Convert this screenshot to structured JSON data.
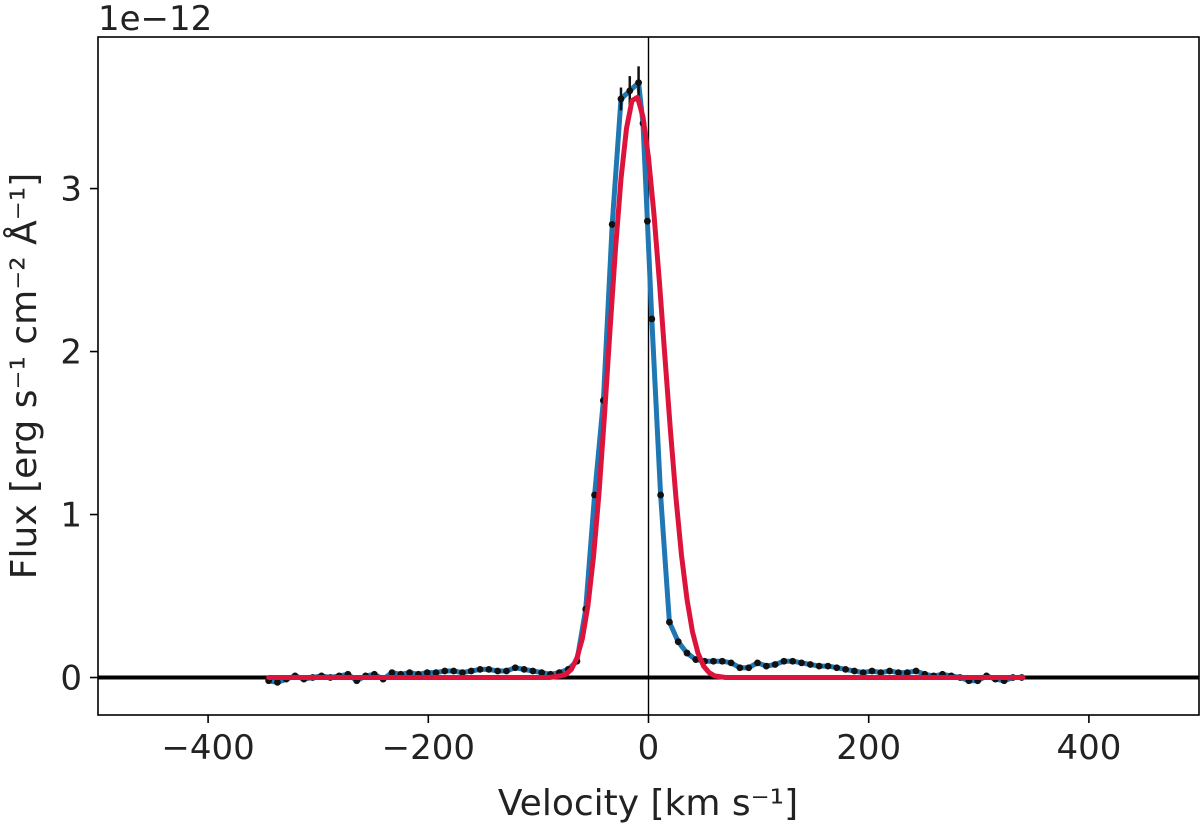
{
  "chart_data": {
    "type": "line",
    "xlabel": "Velocity [km s⁻¹]",
    "ylabel": "Flux [erg s⁻¹ cm⁻² Å⁻¹]",
    "y_offset_label": "1e−12",
    "y_scale_factor": 1e-12,
    "xlim": [
      -500,
      500
    ],
    "ylim": [
      -0.23,
      3.93
    ],
    "x_ticks": [
      -400,
      -200,
      0,
      200,
      400
    ],
    "x_tick_labels": [
      "−400",
      "−200",
      "0",
      "200",
      "400"
    ],
    "y_ticks": [
      0,
      1,
      2,
      3
    ],
    "y_tick_labels": [
      "0",
      "1",
      "2",
      "3"
    ],
    "grid": false,
    "reference_lines": {
      "horizontal_y": 0,
      "vertical_x": 0
    },
    "series": [
      {
        "role": "observed",
        "style": "points",
        "color": "#111111",
        "x": [
          -345,
          -337,
          -329,
          -321,
          -313,
          -305,
          -297,
          -289,
          -281,
          -273,
          -265,
          -257,
          -249,
          -241,
          -233,
          -225,
          -217,
          -209,
          -201,
          -193,
          -185,
          -177,
          -169,
          -161,
          -153,
          -145,
          -137,
          -129,
          -121,
          -113,
          -105,
          -97,
          -89,
          -81,
          -73,
          -65,
          -57,
          -49,
          -41,
          -33,
          -25,
          -17,
          -9,
          -5,
          -1,
          3,
          11,
          19,
          27,
          35,
          43,
          51,
          59,
          67,
          75,
          83,
          91,
          99,
          107,
          115,
          123,
          131,
          139,
          147,
          155,
          163,
          171,
          179,
          187,
          195,
          203,
          211,
          219,
          227,
          235,
          243,
          251,
          259,
          267,
          275,
          283,
          291,
          299,
          307,
          315,
          323,
          331,
          339
        ],
        "y": [
          -0.02,
          -0.03,
          -0.01,
          0.01,
          -0.01,
          0.0,
          0.01,
          0.0,
          0.01,
          0.02,
          -0.02,
          0.01,
          0.02,
          -0.01,
          0.03,
          0.02,
          0.03,
          0.02,
          0.03,
          0.03,
          0.04,
          0.04,
          0.03,
          0.04,
          0.05,
          0.05,
          0.04,
          0.04,
          0.06,
          0.05,
          0.04,
          0.03,
          0.02,
          0.03,
          0.05,
          0.1,
          0.42,
          1.12,
          1.7,
          2.78,
          3.55,
          3.6,
          3.65,
          3.4,
          2.8,
          2.2,
          1.12,
          0.34,
          0.22,
          0.15,
          0.11,
          0.1,
          0.1,
          0.1,
          0.09,
          0.06,
          0.06,
          0.09,
          0.07,
          0.08,
          0.1,
          0.1,
          0.09,
          0.08,
          0.07,
          0.07,
          0.06,
          0.05,
          0.04,
          0.03,
          0.04,
          0.03,
          0.04,
          0.03,
          0.03,
          0.04,
          0.02,
          0.01,
          0.02,
          0.01,
          0.0,
          -0.02,
          -0.02,
          0.01,
          -0.01,
          -0.02,
          0.0,
          0.0
        ],
        "yerr": [
          0,
          0,
          0,
          0,
          0,
          0,
          0,
          0,
          0,
          0,
          0,
          0,
          0,
          0,
          0,
          0,
          0,
          0,
          0,
          0,
          0,
          0,
          0,
          0,
          0,
          0,
          0,
          0,
          0,
          0,
          0,
          0,
          0,
          0,
          0,
          0,
          0,
          0,
          0,
          0,
          0.07,
          0.09,
          0.1,
          0,
          0,
          0,
          0,
          0,
          0,
          0,
          0,
          0,
          0,
          0,
          0,
          0,
          0,
          0,
          0,
          0,
          0,
          0,
          0,
          0,
          0,
          0,
          0,
          0,
          0,
          0,
          0,
          0,
          0,
          0,
          0,
          0,
          0,
          0,
          0,
          0,
          0,
          0,
          0,
          0,
          0,
          0,
          0,
          0
        ]
      },
      {
        "role": "data-line",
        "style": "line",
        "color": "#1f77b4",
        "x": [
          -345,
          -337,
          -329,
          -321,
          -313,
          -305,
          -297,
          -289,
          -281,
          -273,
          -265,
          -257,
          -249,
          -241,
          -233,
          -225,
          -217,
          -209,
          -201,
          -193,
          -185,
          -177,
          -169,
          -161,
          -153,
          -145,
          -137,
          -129,
          -121,
          -113,
          -105,
          -97,
          -89,
          -81,
          -73,
          -65,
          -57,
          -49,
          -41,
          -33,
          -25,
          -17,
          -9,
          -5,
          -1,
          3,
          11,
          19,
          27,
          35,
          43,
          51,
          59,
          67,
          75,
          83,
          91,
          99,
          107,
          115,
          123,
          131,
          139,
          147,
          155,
          163,
          171,
          179,
          187,
          195,
          203,
          211,
          219,
          227,
          235,
          243,
          251,
          259,
          267,
          275,
          283,
          291,
          299,
          307,
          315,
          323,
          331,
          339
        ],
        "y": [
          -0.02,
          -0.03,
          -0.01,
          0.01,
          -0.01,
          0.0,
          0.01,
          0.0,
          0.01,
          0.02,
          -0.02,
          0.01,
          0.02,
          -0.01,
          0.03,
          0.02,
          0.03,
          0.02,
          0.03,
          0.03,
          0.04,
          0.04,
          0.03,
          0.04,
          0.05,
          0.05,
          0.04,
          0.04,
          0.06,
          0.05,
          0.04,
          0.03,
          0.02,
          0.03,
          0.05,
          0.1,
          0.42,
          1.12,
          1.7,
          2.78,
          3.55,
          3.6,
          3.65,
          3.4,
          2.8,
          2.2,
          1.12,
          0.34,
          0.22,
          0.15,
          0.11,
          0.1,
          0.1,
          0.1,
          0.09,
          0.06,
          0.06,
          0.09,
          0.07,
          0.08,
          0.1,
          0.1,
          0.09,
          0.08,
          0.07,
          0.07,
          0.06,
          0.05,
          0.04,
          0.03,
          0.04,
          0.03,
          0.04,
          0.03,
          0.03,
          0.04,
          0.02,
          0.01,
          0.02,
          0.01,
          0.0,
          -0.02,
          -0.02,
          0.01,
          -0.01,
          -0.02,
          0.0,
          0.0
        ]
      },
      {
        "role": "model-fit",
        "style": "line",
        "color": "#dc143c",
        "x": [
          -345,
          -300,
          -250,
          -200,
          -150,
          -120,
          -100,
          -90,
          -80,
          -75,
          -70,
          -65,
          -60,
          -55,
          -50,
          -45,
          -40,
          -35,
          -30,
          -25,
          -20,
          -15,
          -10,
          -5,
          0,
          5,
          10,
          15,
          20,
          25,
          30,
          35,
          40,
          45,
          50,
          55,
          60,
          70,
          80,
          100,
          150,
          200,
          250,
          300,
          340
        ],
        "y": [
          0,
          0,
          0,
          0,
          0,
          0,
          0,
          0,
          0.01,
          0.02,
          0.05,
          0.12,
          0.24,
          0.44,
          0.74,
          1.13,
          1.61,
          2.13,
          2.63,
          3.06,
          3.37,
          3.54,
          3.56,
          3.44,
          3.19,
          2.84,
          2.42,
          1.96,
          1.51,
          1.1,
          0.75,
          0.48,
          0.28,
          0.15,
          0.07,
          0.03,
          0.01,
          0,
          0,
          0,
          0,
          0,
          0,
          0,
          0
        ]
      }
    ]
  }
}
